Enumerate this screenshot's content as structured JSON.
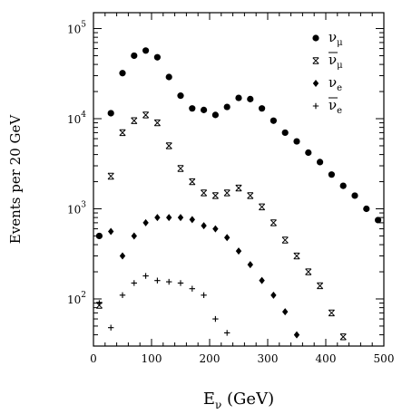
{
  "chart_data": {
    "type": "scatter",
    "xlabel": {
      "main": "E",
      "sub": "ν",
      "unit": " (GeV)"
    },
    "ylabel": "Events per 20 GeV",
    "xlim": [
      0,
      500
    ],
    "ylim": [
      30,
      150000
    ],
    "yscale": "log",
    "x_ticks": [
      0,
      100,
      200,
      300,
      400,
      500
    ],
    "y_ticks": [
      {
        "value": 100,
        "base": "10",
        "exp": "2"
      },
      {
        "value": 1000,
        "base": "10",
        "exp": "3"
      },
      {
        "value": 10000,
        "base": "10",
        "exp": "4"
      },
      {
        "value": 100000,
        "base": "10",
        "exp": "5"
      }
    ],
    "legend_position": "top-right",
    "grid": false,
    "series": [
      {
        "name": "ν_μ",
        "symbol": "ν",
        "sub": "μ",
        "overbar": false,
        "marker": "circle",
        "x": [
          10,
          30,
          50,
          70,
          90,
          110,
          130,
          150,
          170,
          190,
          210,
          230,
          250,
          270,
          290,
          310,
          330,
          350,
          370,
          390,
          410,
          430,
          450,
          470,
          490
        ],
        "y": [
          500,
          11500,
          32000,
          50000,
          57000,
          48000,
          29000,
          18000,
          13000,
          12500,
          11000,
          13500,
          17000,
          16500,
          13000,
          9500,
          7000,
          5600,
          4200,
          3300,
          2400,
          1800,
          1400,
          1000,
          750
        ]
      },
      {
        "name": "ν̄_μ",
        "symbol": "ν",
        "sub": "μ",
        "overbar": true,
        "marker": "cross-box",
        "x": [
          10,
          30,
          50,
          70,
          90,
          110,
          130,
          150,
          170,
          190,
          210,
          230,
          250,
          270,
          290,
          310,
          330,
          350,
          370,
          390,
          410,
          430
        ],
        "y": [
          85,
          2300,
          7000,
          9500,
          11000,
          9000,
          5000,
          2800,
          2000,
          1500,
          1400,
          1500,
          1700,
          1400,
          1050,
          700,
          450,
          300,
          200,
          140,
          70,
          38
        ]
      },
      {
        "name": "ν_e",
        "symbol": "ν",
        "sub": "e",
        "overbar": false,
        "marker": "diamond",
        "x": [
          30,
          50,
          70,
          90,
          110,
          130,
          150,
          170,
          190,
          210,
          230,
          250,
          270,
          290,
          310,
          330,
          350
        ],
        "y": [
          560,
          300,
          500,
          700,
          800,
          800,
          800,
          760,
          650,
          600,
          480,
          340,
          240,
          160,
          110,
          72,
          40
        ]
      },
      {
        "name": "ν̄_e",
        "symbol": "ν",
        "sub": "e",
        "overbar": true,
        "marker": "plus",
        "x": [
          10,
          30,
          50,
          70,
          90,
          110,
          130,
          150,
          170,
          190,
          210,
          230
        ],
        "y": [
          90,
          48,
          110,
          150,
          180,
          160,
          155,
          150,
          130,
          110,
          60,
          42
        ]
      }
    ]
  }
}
